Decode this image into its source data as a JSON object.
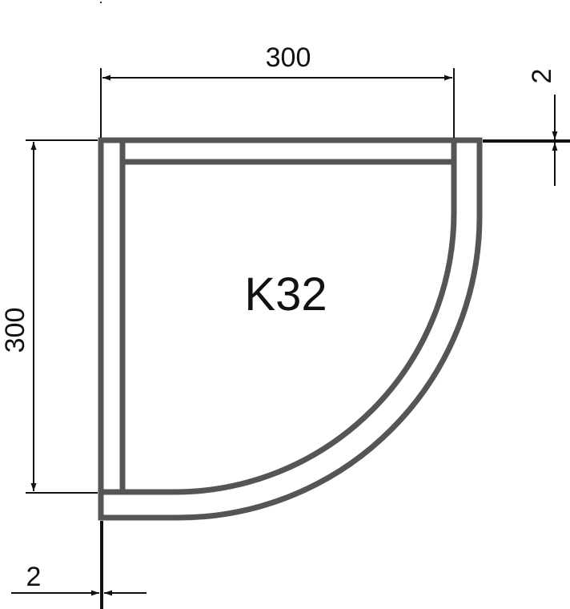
{
  "diagram": {
    "label": "K32",
    "dimension_width": "300",
    "dimension_height": "300",
    "dimension_offset_top": "2",
    "dimension_offset_bottom": "2"
  },
  "colors": {
    "frame": "#555555",
    "dimension_line": "#111111",
    "background": "#ffffff"
  }
}
